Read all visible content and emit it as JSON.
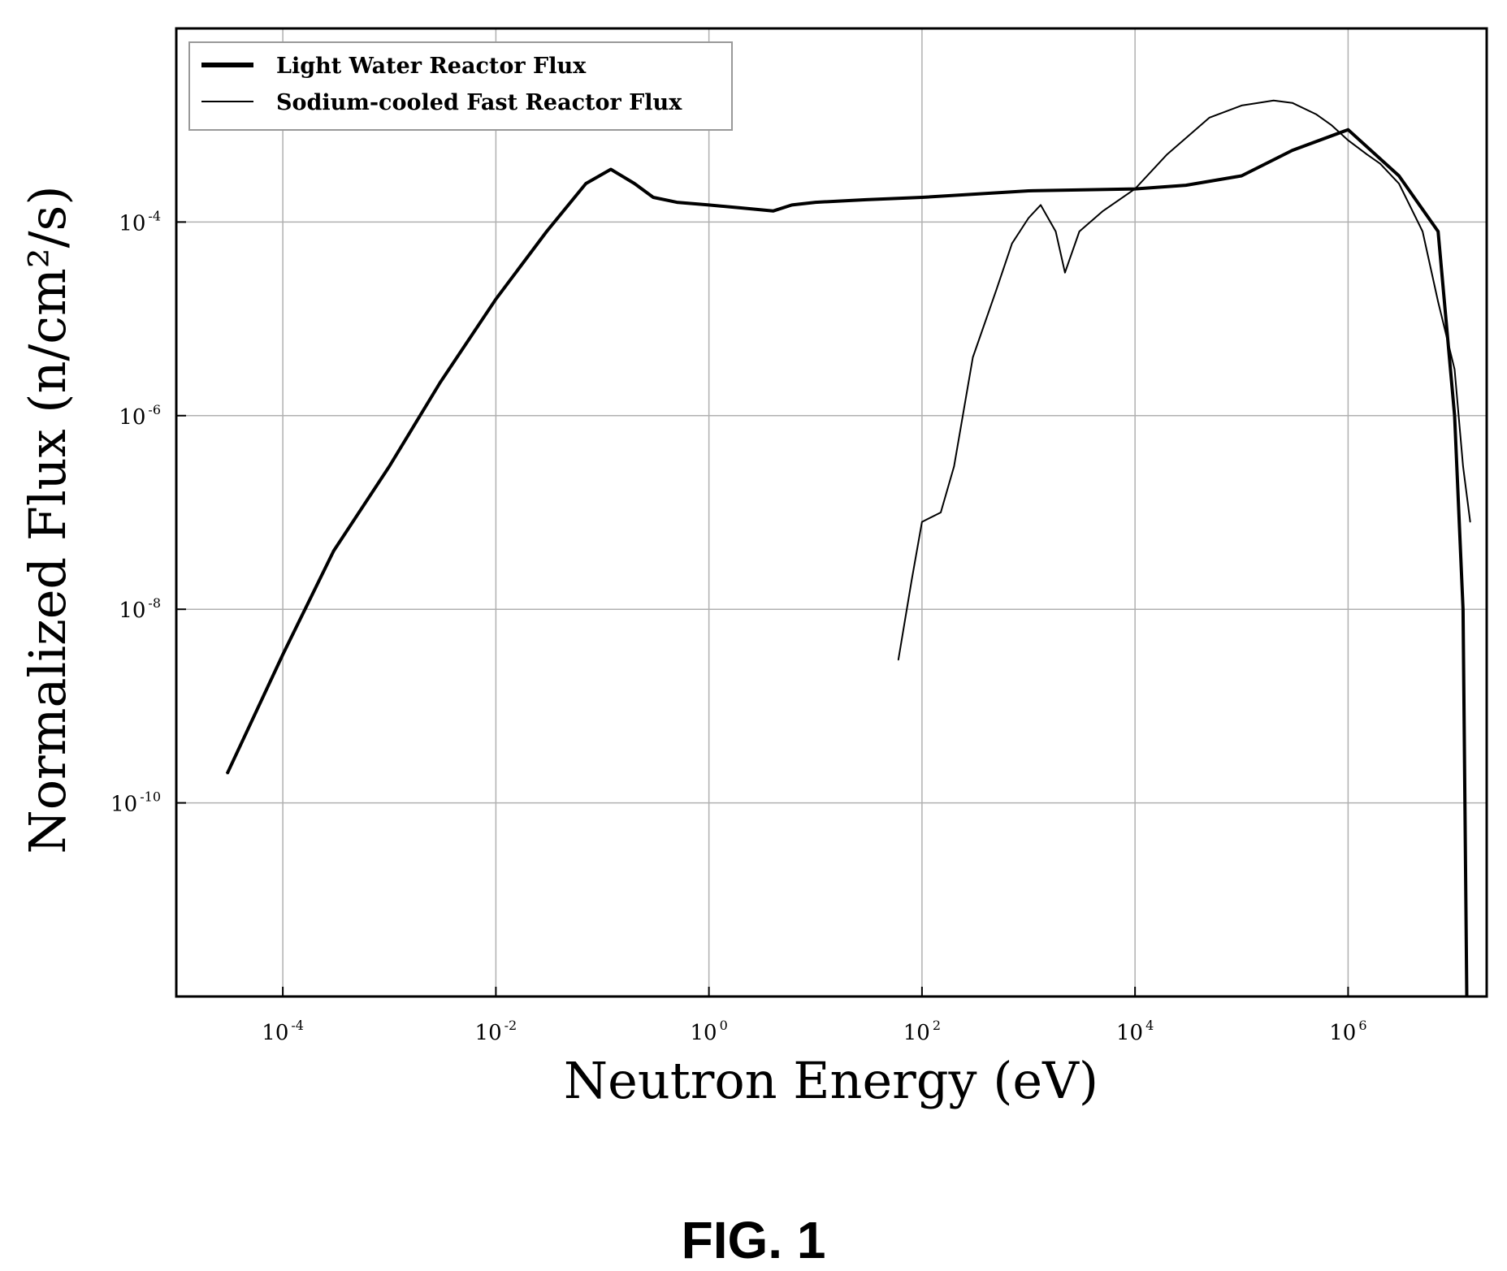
{
  "figure": {
    "caption": "FIG. 1"
  },
  "chart_data": {
    "type": "line",
    "title": "",
    "xlabel": "Neutron Energy (eV)",
    "ylabel": "Normalized Flux (n/cm²/s)",
    "x_scale": "log",
    "y_scale": "log",
    "xlim": [
      1e-05,
      20000000.0
    ],
    "ylim": [
      1e-12,
      0.01
    ],
    "grid": true,
    "legend_position": "top-left",
    "x_ticks": [
      {
        "base": "10",
        "exp": "-4",
        "value": 0.0001
      },
      {
        "base": "10",
        "exp": "-2",
        "value": 0.01
      },
      {
        "base": "10",
        "exp": "0",
        "value": 1
      },
      {
        "base": "10",
        "exp": "2",
        "value": 100
      },
      {
        "base": "10",
        "exp": "4",
        "value": 10000
      },
      {
        "base": "10",
        "exp": "6",
        "value": 1000000
      }
    ],
    "y_ticks": [
      {
        "base": "10",
        "exp": "-4",
        "value": 0.0001
      },
      {
        "base": "10",
        "exp": "-6",
        "value": 1e-06
      },
      {
        "base": "10",
        "exp": "-8",
        "value": 1e-08
      },
      {
        "base": "10",
        "exp": "-10",
        "value": 1e-10
      }
    ],
    "series": [
      {
        "name": "Light Water Reactor Flux",
        "color": "#000000",
        "x": [
          3e-05,
          0.0001,
          0.0003,
          0.001,
          0.003,
          0.01,
          0.03,
          0.07,
          0.12,
          0.2,
          0.3,
          0.5,
          1,
          2,
          4,
          6,
          10,
          30,
          100,
          1000,
          10000,
          30000,
          100000.0,
          300000.0,
          1000000.0,
          3000000.0,
          7000000.0,
          10000000.0,
          12000000.0,
          13000000.0
        ],
        "y": [
          2e-10,
          3.4e-09,
          4e-08,
          3e-07,
          2.2e-06,
          1.6e-05,
          8e-05,
          0.00025,
          0.00035,
          0.00025,
          0.00018,
          0.00016,
          0.00015,
          0.00014,
          0.00013,
          0.00015,
          0.00016,
          0.00017,
          0.00018,
          0.00021,
          0.00022,
          0.00024,
          0.0003,
          0.00055,
          0.0009,
          0.0003,
          8e-05,
          1e-06,
          1e-08,
          1e-12
        ]
      },
      {
        "name": "Sodium-cooled Fast Reactor Flux",
        "color": "#000000",
        "x": [
          60,
          80,
          100,
          150,
          200,
          300,
          500,
          700,
          1000,
          1300,
          1800,
          2200,
          3000,
          5000,
          10000,
          20000,
          50000,
          100000.0,
          200000.0,
          300000.0,
          500000.0,
          700000.0,
          1000000.0,
          1500000.0,
          2000000.0,
          3000000.0,
          5000000.0,
          7000000.0,
          10000000.0,
          12000000.0,
          14000000.0
        ],
        "y": [
          3e-09,
          2e-08,
          8e-08,
          1e-07,
          3e-07,
          4e-06,
          2e-05,
          6e-05,
          0.00011,
          0.00015,
          8e-05,
          3e-05,
          8e-05,
          0.00013,
          0.00022,
          0.0005,
          0.0012,
          0.0016,
          0.0018,
          0.0017,
          0.0013,
          0.001,
          0.0007,
          0.0005,
          0.0004,
          0.00025,
          8e-05,
          1.5e-05,
          3e-06,
          3e-07,
          8e-08
        ]
      }
    ]
  }
}
